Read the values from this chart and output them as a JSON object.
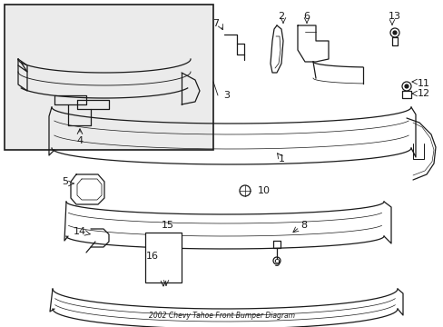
{
  "title": "2002 Chevy Tahoe Front Bumper Diagram",
  "bg_color": "#ffffff",
  "line_color": "#1a1a1a",
  "fig_width": 4.89,
  "fig_height": 3.6,
  "dpi": 100
}
